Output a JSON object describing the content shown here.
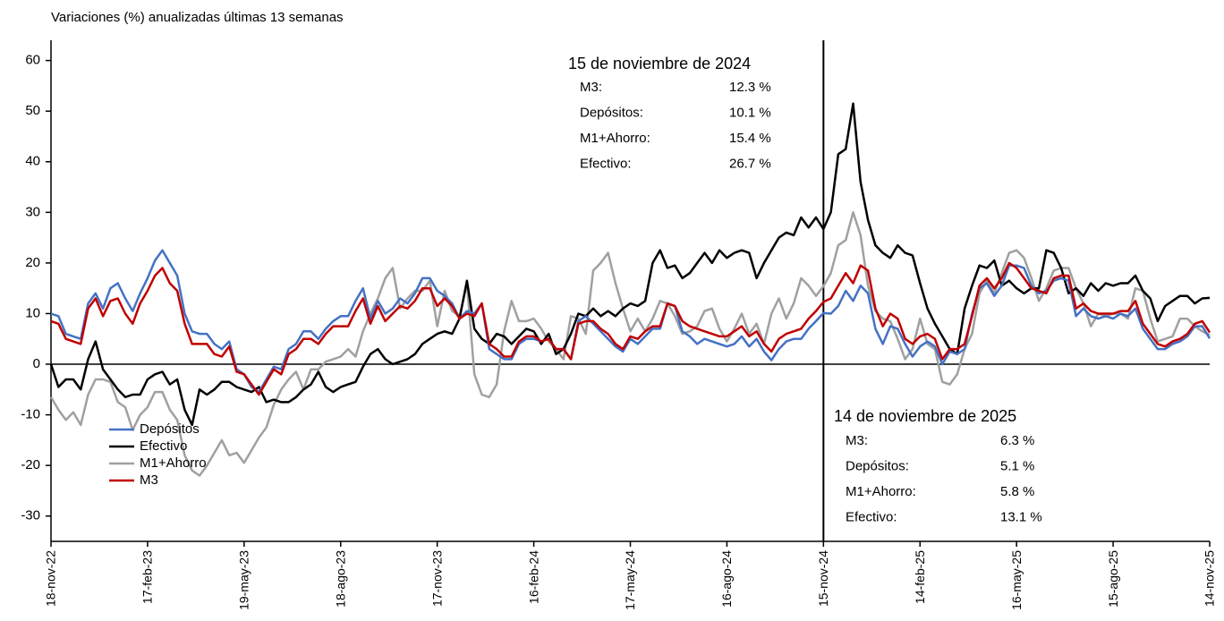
{
  "chart_data": {
    "type": "line",
    "title": "Variaciones (%) anualizadas últimas 13 semanas",
    "categories": [
      "18-nov-22",
      null,
      null,
      null,
      null,
      null,
      null,
      null,
      null,
      null,
      null,
      null,
      null,
      "17-feb-23",
      null,
      null,
      null,
      null,
      null,
      null,
      null,
      null,
      null,
      null,
      null,
      null,
      "19-may-23",
      null,
      null,
      null,
      null,
      null,
      null,
      null,
      null,
      null,
      null,
      null,
      null,
      "18-ago-23",
      null,
      null,
      null,
      null,
      null,
      null,
      null,
      null,
      null,
      null,
      null,
      null,
      "17-nov-23",
      null,
      null,
      null,
      null,
      null,
      null,
      null,
      null,
      null,
      null,
      null,
      null,
      "16-feb-24",
      null,
      null,
      null,
      null,
      null,
      null,
      null,
      null,
      null,
      null,
      null,
      null,
      "17-may-24",
      null,
      null,
      null,
      null,
      null,
      null,
      null,
      null,
      null,
      null,
      null,
      null,
      "16-ago-24",
      null,
      null,
      null,
      null,
      null,
      null,
      null,
      null,
      null,
      null,
      null,
      null,
      "15-nov-24",
      null,
      null,
      null,
      null,
      null,
      null,
      null,
      null,
      null,
      null,
      null,
      null,
      "14-feb-25",
      null,
      null,
      null,
      null,
      null,
      null,
      null,
      null,
      null,
      null,
      null,
      null,
      "16-may-25",
      null,
      null,
      null,
      null,
      null,
      null,
      null,
      null,
      null,
      null,
      null,
      null,
      "15-ago-25",
      null,
      null,
      null,
      null,
      null,
      null,
      null,
      null,
      null,
      null,
      null,
      null,
      "14-nov-25"
    ],
    "series": [
      {
        "name": "Depósitos",
        "color": "#4472c4",
        "values": [
          10,
          9.5,
          6,
          5.5,
          5,
          12,
          14,
          11,
          15,
          16,
          13,
          10.5,
          14,
          17,
          20.5,
          22.5,
          20,
          17.5,
          10,
          6.5,
          6,
          6,
          4,
          3,
          4.5,
          -1,
          -2,
          -4.5,
          -5.5,
          -3,
          -0.5,
          -1,
          3,
          4,
          6.5,
          6.5,
          5,
          7,
          8.5,
          9.5,
          9.5,
          12.5,
          15,
          9,
          12.5,
          10,
          11,
          13,
          12,
          14,
          17,
          17,
          14.5,
          13.5,
          12,
          9,
          10.5,
          10,
          12,
          3,
          2,
          1,
          1,
          4,
          5,
          5,
          4.5,
          5,
          3,
          3,
          1,
          8.5,
          9.5,
          8,
          6.5,
          5,
          3.5,
          2.5,
          5,
          4,
          5.5,
          7,
          7,
          12,
          11.5,
          6.5,
          5.5,
          4,
          5,
          4.5,
          4,
          3.5,
          4,
          5.5,
          3.5,
          5,
          2.5,
          0.8,
          3,
          4.5,
          5,
          5,
          7,
          8.5,
          10.1,
          10,
          11.5,
          14.5,
          12.5,
          15.5,
          14,
          7,
          4,
          7.5,
          7,
          4,
          1.5,
          3.5,
          4.5,
          3.5,
          0,
          2.5,
          2,
          3,
          10,
          15,
          16,
          13.5,
          15.5,
          19.5,
          19.5,
          19,
          15.5,
          14,
          14.5,
          16.5,
          17,
          16.5,
          9.5,
          11,
          9.5,
          9,
          9.5,
          9,
          10,
          9.5,
          11,
          7,
          5,
          3,
          3,
          4,
          4.5,
          5.5,
          7.5,
          7.5,
          5.1
        ]
      },
      {
        "name": "Efectivo",
        "color": "#000000",
        "values": [
          0,
          -4.5,
          -3,
          -3,
          -5,
          1,
          4.5,
          -1,
          -3,
          -5,
          -6.5,
          -6,
          -6,
          -3,
          -2,
          -1.5,
          -4,
          -3,
          -9,
          -12,
          -5,
          -6,
          -5,
          -3.5,
          -3.5,
          -4.5,
          -5,
          -5.5,
          -4.5,
          -7.5,
          -7,
          -7.5,
          -7.5,
          -6.5,
          -5,
          -4,
          -1.5,
          -4.5,
          -5.5,
          -4.5,
          -4,
          -3.5,
          -0.5,
          2,
          3,
          1,
          0,
          0.5,
          1,
          2,
          4,
          5,
          6,
          6.5,
          6,
          9,
          16.5,
          7,
          5,
          4,
          6,
          5.5,
          4,
          5.5,
          7,
          6.5,
          4,
          6,
          2,
          3,
          6,
          10,
          9.5,
          11,
          9.5,
          10.5,
          9.5,
          11,
          12,
          11.5,
          12.5,
          20,
          22.5,
          19,
          19.5,
          17,
          18,
          20,
          22,
          20,
          22.5,
          21,
          22,
          22.5,
          22,
          17,
          20,
          22.5,
          25,
          26,
          25.5,
          29,
          27,
          29,
          26.7,
          30,
          41.5,
          42.5,
          51.5,
          36,
          28.5,
          23.5,
          22,
          21,
          23.5,
          22,
          21.5,
          16,
          11,
          8,
          5.5,
          3,
          2,
          11,
          15.5,
          19.5,
          19,
          20.5,
          15.5,
          16.5,
          15,
          14,
          15,
          15,
          22.5,
          22,
          19,
          14,
          15,
          13.5,
          16,
          14.5,
          16,
          15.5,
          16,
          16,
          17.5,
          14.5,
          13,
          8.5,
          11.5,
          12.5,
          13.5,
          13.5,
          12,
          13,
          13.1
        ]
      },
      {
        "name": "M1+Ahorro",
        "color": "#a0a0a0",
        "values": [
          -6.5,
          -9,
          -11,
          -9.5,
          -12,
          -6,
          -3,
          -3,
          -3.5,
          -7.5,
          -8.5,
          -13,
          -10,
          -8.5,
          -5.5,
          -5.5,
          -9,
          -11,
          -18,
          -21,
          -22,
          -20,
          -17.5,
          -15,
          -18,
          -17.5,
          -19.5,
          -17,
          -14.5,
          -12.5,
          -8,
          -5,
          -3,
          -1.5,
          -5,
          -1,
          -1,
          0.5,
          1,
          1.5,
          3,
          1.5,
          6.5,
          10,
          13,
          17,
          19,
          11,
          13,
          14.5,
          14.5,
          16.5,
          7.5,
          14.5,
          10.5,
          9.5,
          16,
          -2,
          -6,
          -6.5,
          -4,
          6.5,
          12.5,
          8.5,
          8.5,
          9,
          7,
          4.5,
          3,
          1,
          9.5,
          9,
          6,
          18.5,
          20,
          22,
          16,
          11,
          6.5,
          9,
          6.5,
          9,
          12.5,
          12,
          9.5,
          6,
          6.5,
          7.5,
          10.5,
          11,
          7,
          4.5,
          7,
          10,
          6,
          8,
          4,
          10,
          13,
          9,
          12,
          17,
          15.5,
          13.5,
          15.4,
          18,
          23.5,
          24.5,
          30,
          25.5,
          15.5,
          10.5,
          9,
          8.5,
          5,
          1,
          3,
          9,
          4,
          3,
          -3.5,
          -4,
          -2,
          3,
          6,
          14,
          16.5,
          14,
          18,
          22,
          22.5,
          21,
          17,
          12.5,
          15,
          18.5,
          19,
          19,
          15,
          12,
          7.5,
          10,
          9.5,
          10,
          10,
          9,
          15,
          14.5,
          9,
          4.5,
          5,
          5.5,
          9,
          9,
          7.5,
          6.5,
          5.8
        ]
      },
      {
        "name": "M3",
        "color": "#c00000",
        "values": [
          8.5,
          8,
          5,
          4.5,
          4,
          11,
          13,
          9.5,
          12.5,
          13,
          10,
          8,
          12,
          14.5,
          17.5,
          19,
          16,
          14.5,
          8,
          4,
          4,
          4,
          2,
          1.5,
          3.5,
          -1.5,
          -2,
          -4,
          -6,
          -3.5,
          -1,
          -2,
          2,
          3,
          5,
          5,
          4,
          6,
          7.5,
          7.5,
          7.5,
          10.5,
          13,
          8,
          11.5,
          8.5,
          10,
          11.5,
          11,
          12.5,
          15,
          15,
          11.5,
          13,
          11.5,
          9,
          10,
          9.5,
          12,
          4,
          3,
          1.5,
          1.5,
          4.5,
          5.5,
          5.5,
          4.5,
          5,
          3,
          3,
          1,
          8,
          8.5,
          8.5,
          7,
          6,
          4,
          3,
          5.5,
          5,
          6.5,
          7.5,
          7.5,
          12,
          11.5,
          8.5,
          7.5,
          7,
          6.5,
          6,
          5.5,
          5.5,
          6.5,
          7.5,
          5.5,
          6.5,
          4,
          2.5,
          5,
          6,
          6.5,
          7,
          9,
          10.5,
          12.3,
          13,
          15.5,
          18,
          16,
          19.5,
          18.5,
          11,
          7.5,
          10,
          9,
          5,
          4,
          5.5,
          6,
          5,
          1,
          3,
          3,
          4,
          9.5,
          15.5,
          17,
          15,
          17,
          20,
          19,
          17,
          15,
          14.5,
          14,
          17,
          17.5,
          17.5,
          11,
          12,
          10.5,
          10,
          10,
          10,
          10.5,
          10.5,
          12.5,
          8,
          6,
          4,
          3.5,
          4.5,
          5,
          6,
          8,
          8.5,
          6.3
        ]
      }
    ],
    "ylim": [
      -35,
      64
    ],
    "yticks": [
      -30,
      -20,
      -10,
      0,
      10,
      20,
      30,
      40,
      50,
      60
    ],
    "vline": "15-nov-24",
    "legend": "left",
    "annotations": [
      {
        "title": "15 de noviembre de 2024",
        "rows": [
          [
            "M3:",
            "12.3 %"
          ],
          [
            "Depósitos:",
            "10.1 %"
          ],
          [
            "M1+Ahorro:",
            "15.4 %"
          ],
          [
            "Efectivo:",
            "26.7 %"
          ]
        ]
      },
      {
        "title": "14 de noviembre de 2025",
        "rows": [
          [
            "M3:",
            "6.3 %"
          ],
          [
            "Depósitos:",
            "5.1 %"
          ],
          [
            "M1+Ahorro:",
            "5.8 %"
          ],
          [
            "Efectivo:",
            "13.1 %"
          ]
        ]
      }
    ]
  }
}
